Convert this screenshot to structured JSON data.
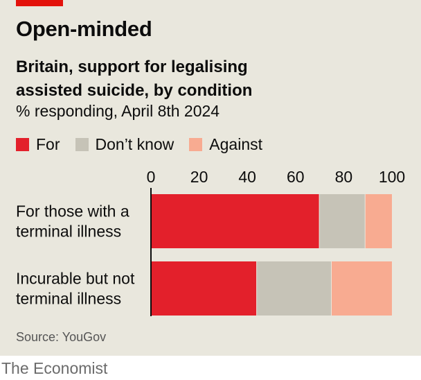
{
  "title": "Open-minded",
  "subtitle_lines": [
    "Britain, support for legalising",
    "assisted suicide, by condition"
  ],
  "unit_line": "% responding, April 8th 2024",
  "source": "Source: YouGov",
  "brand": "The Economist",
  "colors": {
    "background": "#e9e7dd",
    "brand_red": "#e3120b",
    "for": "#e3202b",
    "dont_know": "#c6c3b7",
    "against": "#f8ab91"
  },
  "chart_data": {
    "type": "bar",
    "orientation": "horizontal",
    "stacked": true,
    "categories": [
      [
        "For those with a",
        "terminal illness"
      ],
      [
        "Incurable but not",
        "terminal illness"
      ]
    ],
    "series": [
      {
        "name": "For",
        "values": [
          70,
          44
        ]
      },
      {
        "name": "Don’t know",
        "values": [
          19,
          31
        ]
      },
      {
        "name": "Against",
        "values": [
          11,
          25
        ]
      }
    ],
    "xlim": [
      0,
      100
    ],
    "xticks": [
      0,
      20,
      40,
      60,
      80,
      100
    ],
    "xaxis_position": "top",
    "legend": "top-left"
  }
}
